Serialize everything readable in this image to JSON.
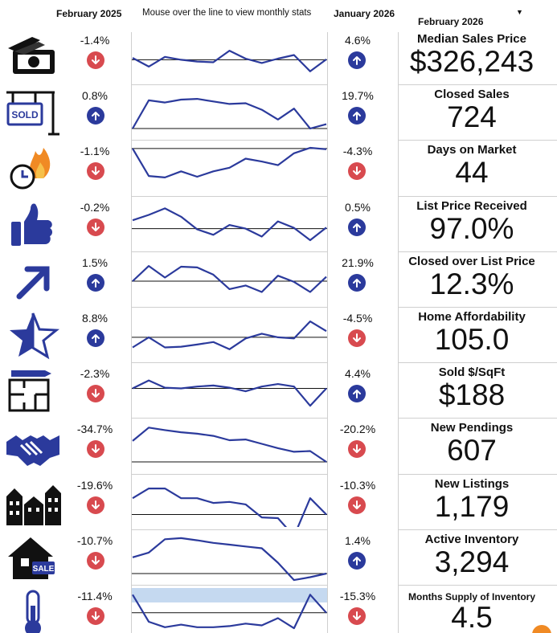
{
  "header": {
    "left_period": "February 2025",
    "instruction": "Mouse over the line to view monthly stats",
    "right_period": "January 2026",
    "selected_period": "February 2026"
  },
  "colors": {
    "up": "#2b3a9c",
    "down": "#d84a4f",
    "line": "#2b3a9c",
    "baseline": "#111111",
    "highlight": "#c5d9f0"
  },
  "rows": [
    {
      "icon": "money-icon",
      "title": "Median Sales Price",
      "value": "$326,243",
      "left_pct": "-1.4%",
      "left_dir": "down",
      "right_pct": "4.6%",
      "right_dir": "up",
      "points": [
        0.42,
        0.18,
        0.45,
        0.37,
        0.32,
        0.3,
        0.62,
        0.4,
        0.28,
        0.4,
        0.5,
        0.05,
        0.38
      ],
      "baseline": 0.37
    },
    {
      "icon": "sold-sign-icon",
      "title": "Closed Sales",
      "value": "724",
      "left_pct": "0.8%",
      "left_dir": "up",
      "right_pct": "19.7%",
      "right_dir": "up",
      "points": [
        0.0,
        0.78,
        0.72,
        0.8,
        0.82,
        0.75,
        0.68,
        0.7,
        0.52,
        0.25,
        0.55,
        0.0,
        0.12
      ],
      "baseline": 0.0
    },
    {
      "icon": "fire-clock-icon",
      "title": "Days on Market",
      "value": "44",
      "left_pct": "-1.1%",
      "left_dir": "down",
      "right_pct": "-4.3%",
      "right_dir": "down",
      "points": [
        0.98,
        0.22,
        0.18,
        0.35,
        0.2,
        0.35,
        0.45,
        0.7,
        0.62,
        0.52,
        0.85,
        1.0,
        0.96
      ],
      "baseline": 0.98
    },
    {
      "icon": "thumbs-up-icon",
      "title": "List Price Received",
      "value": "97.0%",
      "left_pct": "-0.2%",
      "left_dir": "down",
      "right_pct": "0.5%",
      "right_dir": "up",
      "points": [
        0.55,
        0.7,
        0.88,
        0.65,
        0.3,
        0.15,
        0.42,
        0.32,
        0.1,
        0.52,
        0.34,
        0.0,
        0.35
      ],
      "baseline": 0.32
    },
    {
      "icon": "trend-arrow-icon",
      "title": "Closed over List Price",
      "value": "12.3%",
      "left_pct": "1.5%",
      "left_dir": "up",
      "right_pct": "21.9%",
      "right_dir": "up",
      "points": [
        0.4,
        0.82,
        0.5,
        0.8,
        0.78,
        0.58,
        0.18,
        0.28,
        0.1,
        0.55,
        0.38,
        0.1,
        0.52
      ],
      "baseline": 0.4
    },
    {
      "icon": "star-icon",
      "title": "Home Affordability",
      "value": "105.0",
      "left_pct": "8.8%",
      "left_dir": "up",
      "right_pct": "-4.5%",
      "right_dir": "down",
      "points": [
        0.1,
        0.38,
        0.1,
        0.12,
        0.18,
        0.25,
        0.05,
        0.35,
        0.48,
        0.38,
        0.35,
        0.82,
        0.55
      ],
      "baseline": 0.38
    },
    {
      "icon": "floor-plan-icon",
      "title": "Sold $/SqFt",
      "value": "$188",
      "left_pct": "-2.3%",
      "left_dir": "down",
      "right_pct": "4.4%",
      "right_dir": "up",
      "points": [
        0.5,
        0.72,
        0.52,
        0.5,
        0.55,
        0.58,
        0.52,
        0.42,
        0.55,
        0.62,
        0.55,
        0.02,
        0.5
      ],
      "baseline": 0.5
    },
    {
      "icon": "handshake-icon",
      "title": "New Pendings",
      "value": "607",
      "left_pct": "-34.7%",
      "left_dir": "down",
      "right_pct": "-20.2%",
      "right_dir": "down",
      "points": [
        0.58,
        0.95,
        0.88,
        0.82,
        0.78,
        0.72,
        0.6,
        0.62,
        0.5,
        0.38,
        0.28,
        0.3,
        0.0
      ],
      "baseline": 0.0
    },
    {
      "icon": "houses-icon",
      "title": "New Listings",
      "value": "1,179",
      "left_pct": "-19.6%",
      "left_dir": "down",
      "right_pct": "-10.3%",
      "right_dir": "down",
      "points": [
        0.55,
        0.82,
        0.82,
        0.55,
        0.55,
        0.42,
        0.45,
        0.38,
        0.02,
        0.0,
        -0.5,
        0.55,
        0.1
      ],
      "baseline": 0.1
    },
    {
      "icon": "house-sale-icon",
      "title": "Active Inventory",
      "value": "3,294",
      "left_pct": "-10.7%",
      "left_dir": "down",
      "right_pct": "1.4%",
      "right_dir": "up",
      "points": [
        0.45,
        0.58,
        0.95,
        0.98,
        0.92,
        0.85,
        0.8,
        0.75,
        0.7,
        0.3,
        -0.18,
        -0.1,
        0.0
      ],
      "baseline": 0.0
    },
    {
      "icon": "thermometer-icon",
      "title": "Months Supply of Inventory",
      "value": "4.5",
      "left_pct": "-11.4%",
      "left_dir": "down",
      "right_pct": "-15.3%",
      "right_dir": "down",
      "points": [
        0.95,
        0.2,
        0.05,
        0.12,
        0.05,
        0.05,
        0.08,
        0.15,
        0.1,
        0.3,
        0.02,
        0.95,
        0.45
      ],
      "baseline": 0.45,
      "highlight": true
    }
  ]
}
